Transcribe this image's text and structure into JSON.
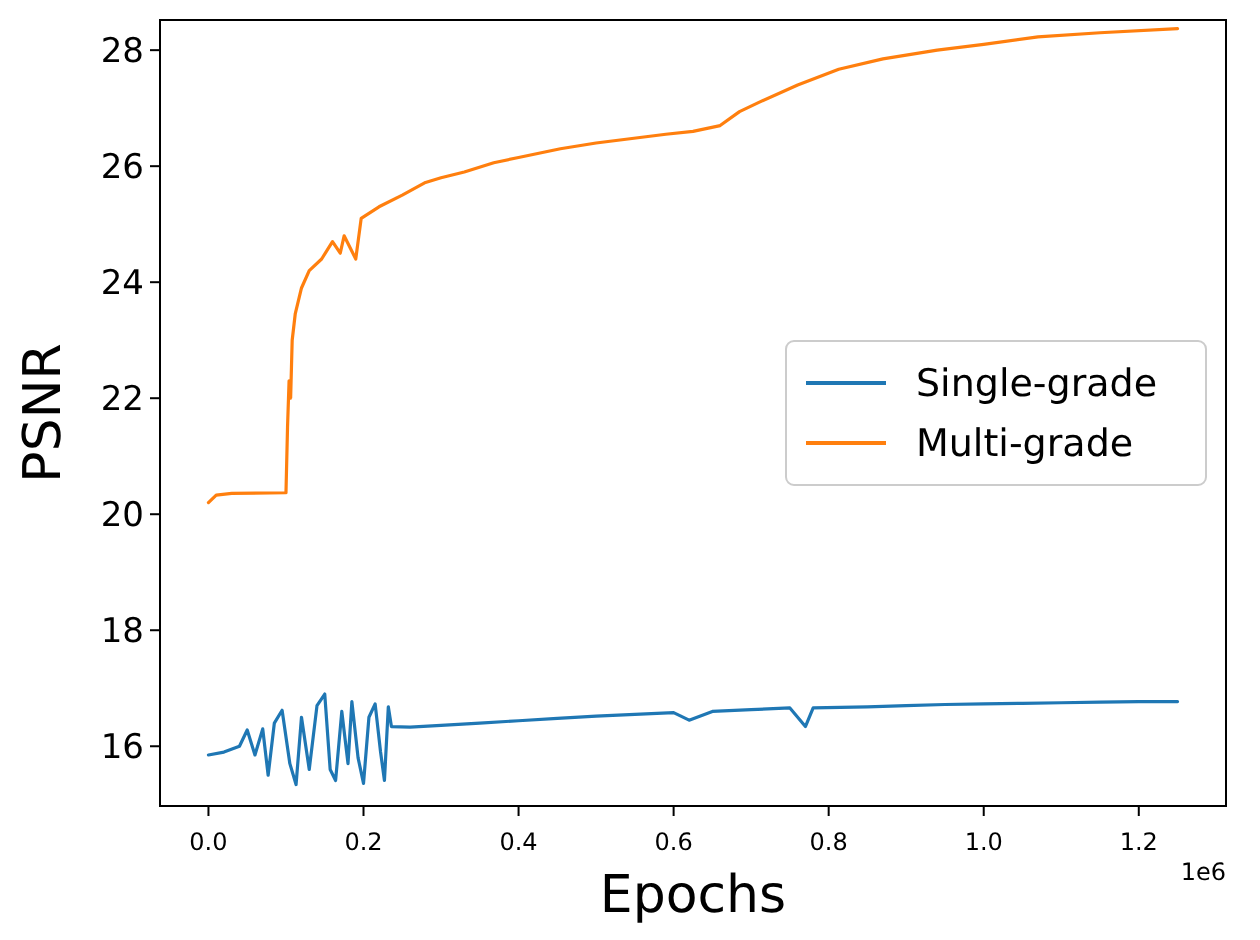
{
  "chart_data": {
    "type": "line",
    "xlabel": "Epochs",
    "ylabel": "PSNR",
    "annotations": [
      "1e6"
    ],
    "xlim": [
      -0.0625,
      1.3125
    ],
    "ylim": [
      14.97,
      28.52
    ],
    "xticks": [
      {
        "value": 0,
        "label": "0.0"
      },
      {
        "value": 0.2,
        "label": "0.2"
      },
      {
        "value": 0.4,
        "label": "0.4"
      },
      {
        "value": 0.6,
        "label": "0.6"
      },
      {
        "value": 0.8,
        "label": "0.8"
      },
      {
        "value": 1.0,
        "label": "1.0"
      },
      {
        "value": 1.2,
        "label": "1.2"
      }
    ],
    "yticks": [
      16,
      18,
      20,
      22,
      24,
      26,
      28
    ],
    "legend": "right",
    "grid": false,
    "line_style": "solid",
    "series": [
      {
        "name": "Single-grade",
        "color": "#1f77b4",
        "x": [
          0,
          0.02,
          0.04,
          0.05,
          0.06,
          0.07,
          0.077,
          0.085,
          0.095,
          0.105,
          0.113,
          0.12,
          0.13,
          0.14,
          0.15,
          0.157,
          0.164,
          0.172,
          0.18,
          0.185,
          0.193,
          0.2,
          0.207,
          0.215,
          0.222,
          0.227,
          0.232,
          0.236,
          0.26,
          0.3,
          0.35,
          0.4,
          0.45,
          0.5,
          0.55,
          0.6,
          0.62,
          0.65,
          0.7,
          0.75,
          0.77,
          0.78,
          0.85,
          0.9,
          0.95,
          1.0,
          1.05,
          1.1,
          1.15,
          1.2,
          1.25
        ],
        "values": [
          15.85,
          15.9,
          16.0,
          16.28,
          15.85,
          16.3,
          15.5,
          16.4,
          16.62,
          15.7,
          15.34,
          16.5,
          15.6,
          16.7,
          16.9,
          15.6,
          15.41,
          16.6,
          15.7,
          16.77,
          15.8,
          15.36,
          16.5,
          16.73,
          15.9,
          15.41,
          16.68,
          16.34,
          16.33,
          16.36,
          16.4,
          16.44,
          16.48,
          16.52,
          16.55,
          16.58,
          16.45,
          16.6,
          16.63,
          16.66,
          16.34,
          16.66,
          16.68,
          16.7,
          16.72,
          16.73,
          16.74,
          16.75,
          16.76,
          16.77,
          16.77
        ]
      },
      {
        "name": "Multi-grade",
        "color": "#ff7f0e",
        "x": [
          0,
          0.01,
          0.03,
          0.1,
          0.102,
          0.104,
          0.106,
          0.108,
          0.112,
          0.12,
          0.13,
          0.146,
          0.16,
          0.17,
          0.175,
          0.19,
          0.197,
          0.22,
          0.25,
          0.28,
          0.3,
          0.33,
          0.368,
          0.4,
          0.454,
          0.5,
          0.59,
          0.625,
          0.66,
          0.685,
          0.71,
          0.76,
          0.813,
          0.87,
          0.94,
          1.0,
          1.07,
          1.15,
          1.25
        ],
        "values": [
          20.2,
          20.33,
          20.36,
          20.37,
          21.5,
          22.3,
          22.0,
          23.0,
          23.46,
          23.9,
          24.2,
          24.4,
          24.7,
          24.5,
          24.8,
          24.4,
          25.1,
          25.3,
          25.5,
          25.72,
          25.8,
          25.9,
          26.06,
          26.15,
          26.3,
          26.4,
          26.55,
          26.6,
          26.7,
          26.94,
          27.1,
          27.4,
          27.67,
          27.85,
          28.0,
          28.1,
          28.23,
          28.3,
          28.37
        ]
      }
    ]
  }
}
